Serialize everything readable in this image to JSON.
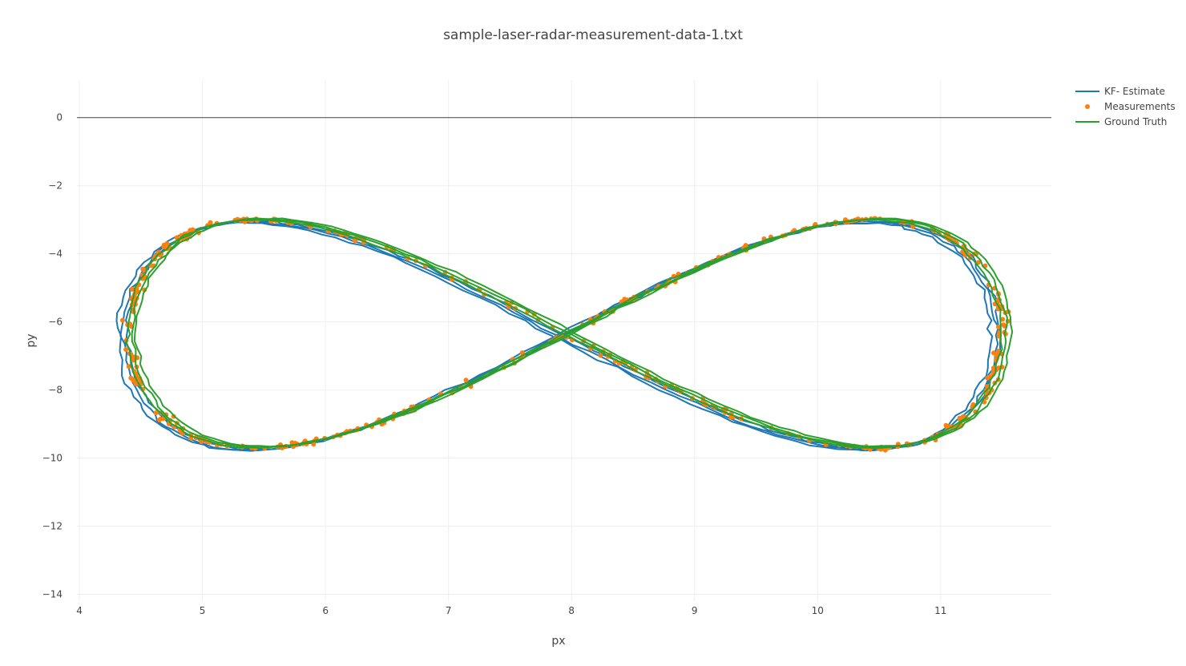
{
  "chart_data": {
    "type": "scatter",
    "title": "sample-laser-radar-measurement-data-1.txt",
    "xlabel": "px",
    "ylabel": "py",
    "xlim": [
      3.98,
      11.9
    ],
    "ylim": [
      -14.2,
      1.1
    ],
    "xticks": [
      4,
      5,
      6,
      7,
      8,
      9,
      10,
      11
    ],
    "yticks": [
      0,
      -2,
      -4,
      -6,
      -8,
      -10,
      -12,
      -14
    ],
    "xtick_labels": [
      "4",
      "5",
      "6",
      "7",
      "8",
      "9",
      "10",
      "11"
    ],
    "ytick_labels": [
      "0",
      "−2",
      "−4",
      "−6",
      "−8",
      "−10",
      "−12",
      "−14"
    ],
    "grid": true,
    "zero_line": true,
    "legend_position": "top-right",
    "curve_model": {
      "shape": "figure-eight",
      "center_x": 7.95,
      "center_y": -6.35,
      "amplitude_x": 3.55,
      "amplitude_y": 6.7,
      "samples": 180
    },
    "series": [
      {
        "name": "KF- Estimate",
        "mode": "lines",
        "color": "#1f77b4",
        "laps": 3,
        "jitter": 0.04,
        "dx": -0.05,
        "dy": -0.06
      },
      {
        "name": "Measurements",
        "mode": "markers",
        "color": "#ff7f0e",
        "count": 500,
        "noise": 0.07
      },
      {
        "name": "Ground Truth",
        "mode": "lines",
        "color": "#2ca02c",
        "laps": 3,
        "jitter": 0.03,
        "dx": 0.03,
        "dy": 0.02
      }
    ],
    "legend": [
      {
        "label": "KF- Estimate",
        "symbol": "line",
        "color": "#1f77b4"
      },
      {
        "label": "Measurements",
        "symbol": "marker",
        "color": "#ff7f0e"
      },
      {
        "label": "Ground Truth",
        "symbol": "line",
        "color": "#2ca02c"
      }
    ]
  }
}
